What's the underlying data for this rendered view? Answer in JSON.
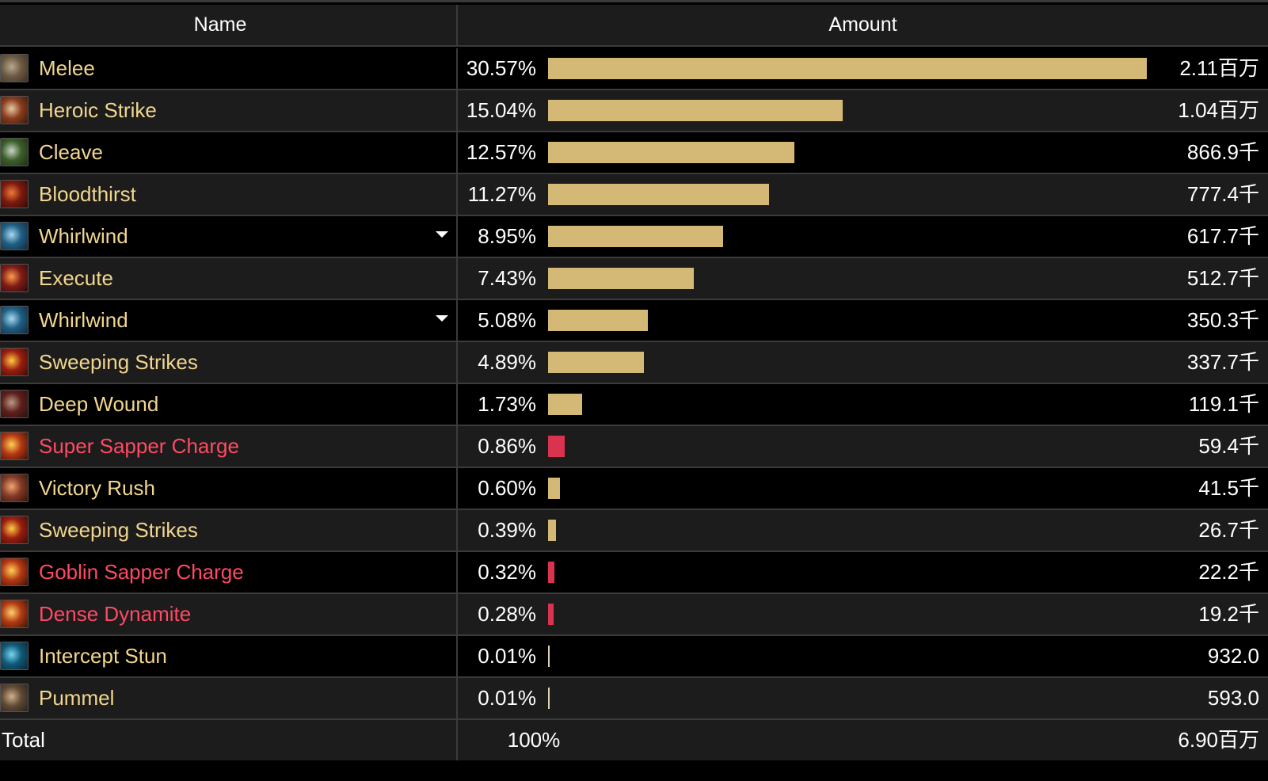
{
  "header": {
    "name_label": "Name",
    "amount_label": "Amount"
  },
  "colors": {
    "bar_gold": "#d3b876",
    "bar_red": "#d9334f",
    "name_gold": "#f2d68e",
    "name_red": "#ff4a63",
    "text_white": "#ffffff"
  },
  "rows": [
    {
      "name": "Melee",
      "pct": "30.57%",
      "pct_value": 30.57,
      "amount": "2.11百万",
      "kind": "gold",
      "icon": "melee-icon",
      "dropdown": false
    },
    {
      "name": "Heroic Strike",
      "pct": "15.04%",
      "pct_value": 15.04,
      "amount": "1.04百万",
      "kind": "gold",
      "icon": "heroic-strike-icon",
      "dropdown": false
    },
    {
      "name": "Cleave",
      "pct": "12.57%",
      "pct_value": 12.57,
      "amount": "866.9千",
      "kind": "gold",
      "icon": "cleave-icon",
      "dropdown": false
    },
    {
      "name": "Bloodthirst",
      "pct": "11.27%",
      "pct_value": 11.27,
      "amount": "777.4千",
      "kind": "gold",
      "icon": "bloodthirst-icon",
      "dropdown": false
    },
    {
      "name": "Whirlwind",
      "pct": "8.95%",
      "pct_value": 8.95,
      "amount": "617.7千",
      "kind": "gold",
      "icon": "whirlwind-icon",
      "dropdown": true
    },
    {
      "name": "Execute",
      "pct": "7.43%",
      "pct_value": 7.43,
      "amount": "512.7千",
      "kind": "gold",
      "icon": "execute-icon",
      "dropdown": false
    },
    {
      "name": "Whirlwind",
      "pct": "5.08%",
      "pct_value": 5.08,
      "amount": "350.3千",
      "kind": "gold",
      "icon": "whirlwind-icon",
      "dropdown": true
    },
    {
      "name": "Sweeping Strikes",
      "pct": "4.89%",
      "pct_value": 4.89,
      "amount": "337.7千",
      "kind": "gold",
      "icon": "sweeping-strikes-icon",
      "dropdown": false
    },
    {
      "name": "Deep Wound",
      "pct": "1.73%",
      "pct_value": 1.73,
      "amount": "119.1千",
      "kind": "gold",
      "icon": "deep-wound-icon",
      "dropdown": false
    },
    {
      "name": "Super Sapper Charge",
      "pct": "0.86%",
      "pct_value": 0.86,
      "amount": "59.4千",
      "kind": "red",
      "icon": "sapper-charge-icon",
      "dropdown": false
    },
    {
      "name": "Victory Rush",
      "pct": "0.60%",
      "pct_value": 0.6,
      "amount": "41.5千",
      "kind": "gold",
      "icon": "victory-rush-icon",
      "dropdown": false
    },
    {
      "name": "Sweeping Strikes",
      "pct": "0.39%",
      "pct_value": 0.39,
      "amount": "26.7千",
      "kind": "gold",
      "icon": "sweeping-strikes-icon",
      "dropdown": false
    },
    {
      "name": "Goblin Sapper Charge",
      "pct": "0.32%",
      "pct_value": 0.32,
      "amount": "22.2千",
      "kind": "red",
      "icon": "sapper-charge-icon",
      "dropdown": false
    },
    {
      "name": "Dense Dynamite",
      "pct": "0.28%",
      "pct_value": 0.28,
      "amount": "19.2千",
      "kind": "red",
      "icon": "dynamite-icon",
      "dropdown": false
    },
    {
      "name": "Intercept Stun",
      "pct": "0.01%",
      "pct_value": 0.01,
      "amount": "932.0",
      "kind": "gold",
      "icon": "intercept-stun-icon",
      "dropdown": false
    },
    {
      "name": "Pummel",
      "pct": "0.01%",
      "pct_value": 0.01,
      "amount": "593.0",
      "kind": "gold",
      "icon": "pummel-icon",
      "dropdown": false
    }
  ],
  "total": {
    "label": "Total",
    "pct": "100%",
    "amount": "6.90百万"
  }
}
